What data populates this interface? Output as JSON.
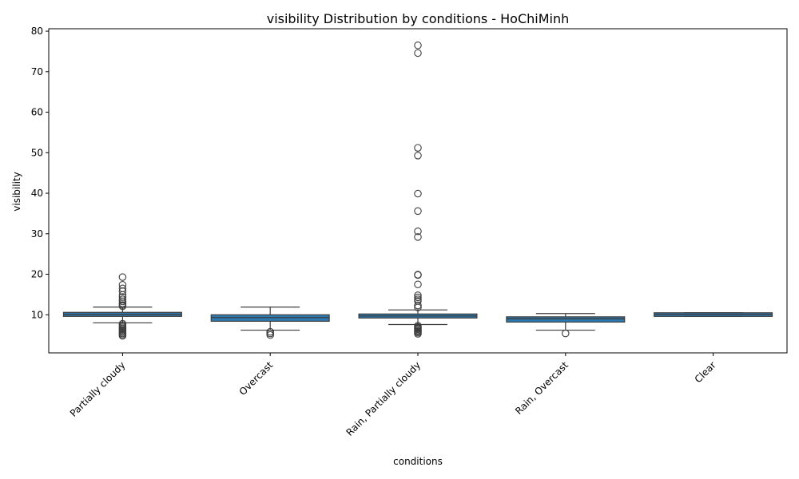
{
  "chart_data": {
    "type": "box",
    "title": "visibility Distribution by conditions - HoChiMinh",
    "xlabel": "conditions",
    "ylabel": "visibility",
    "ylim": [
      0.6,
      80.6
    ],
    "yticks": [
      10,
      20,
      30,
      40,
      50,
      60,
      70,
      80
    ],
    "grid": false,
    "box_color": "#2d7bb3",
    "categories": [
      "Partially cloudy",
      "Overcast",
      "Rain, Partially cloudy",
      "Rain, Overcast",
      "Clear"
    ],
    "boxes": [
      {
        "category": "Partially cloudy",
        "whislo": 8.0,
        "q1": 9.6,
        "med": 10.1,
        "q3": 10.6,
        "whishi": 11.9,
        "fliers": [
          19.3,
          17.4,
          16.5,
          15.8,
          14.9,
          14.4,
          13.8,
          13.3,
          12.8,
          12.4,
          12.1,
          7.8,
          7.5,
          7.2,
          6.9,
          6.6,
          6.3,
          6.0,
          5.7,
          5.4,
          5.1,
          4.8
        ]
      },
      {
        "category": "Overcast",
        "whislo": 6.2,
        "q1": 8.4,
        "med": 9.3,
        "q3": 10.0,
        "whishi": 11.9,
        "fliers": [
          5.8,
          5.4,
          5.0
        ]
      },
      {
        "category": "Rain, Partially cloudy",
        "whislo": 7.6,
        "q1": 9.2,
        "med": 9.7,
        "q3": 10.2,
        "whishi": 11.2,
        "fliers": [
          76.5,
          74.6,
          51.2,
          49.3,
          39.9,
          35.6,
          30.6,
          29.2,
          19.9,
          19.8,
          17.5,
          14.8,
          14.3,
          13.8,
          13.4,
          12.3,
          11.8,
          7.3,
          7.0,
          6.8,
          6.6,
          6.4,
          6.1,
          5.9,
          5.6,
          5.3
        ]
      },
      {
        "category": "Rain, Overcast",
        "whislo": 6.2,
        "q1": 8.2,
        "med": 9.0,
        "q3": 9.5,
        "whishi": 10.3,
        "fliers": [
          5.4
        ]
      },
      {
        "category": "Clear",
        "whislo": 9.6,
        "q1": 9.6,
        "med": 10.1,
        "q3": 10.5,
        "whishi": 10.5,
        "fliers": []
      }
    ]
  }
}
